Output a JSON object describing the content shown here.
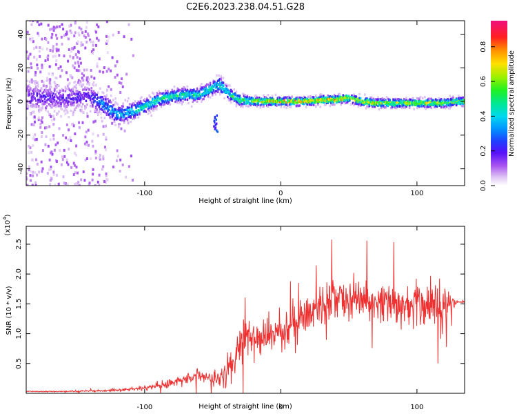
{
  "title": "C2E6.2023.238.04.51.G28",
  "colors": {
    "snr_line": "#ee3030",
    "colormap": [
      "#ffffff",
      "#e0c8f4",
      "#a855f0",
      "#7a10f0",
      "#3020ff",
      "#0050ff",
      "#00b8f0",
      "#00e0a0",
      "#30f030",
      "#c0f000",
      "#ffd000",
      "#ff8000",
      "#ff2020",
      "#f01090"
    ]
  },
  "chart_data": [
    {
      "type": "heatmap",
      "xlabel": "Height of straight line (km)",
      "ylabel": "Frequency (Hz)",
      "xlim": [
        -187,
        135
      ],
      "ylim": [
        -50,
        48
      ],
      "xticks": [
        -100,
        0,
        100
      ],
      "xtick_labels": [
        "-100",
        "0",
        "100"
      ],
      "yticks": [
        -40,
        -20,
        0,
        20,
        40
      ],
      "ytick_labels": [
        "-40",
        "-20",
        "0",
        "20",
        "40"
      ],
      "colorbar": {
        "label": "Normalized spectral amplitude",
        "range": [
          0,
          0.95
        ],
        "ticks": [
          0.0,
          0.2,
          0.4,
          0.6,
          0.8
        ],
        "tick_labels": [
          "0.0",
          "0.2",
          "0.4",
          "0.6",
          "0.8"
        ]
      },
      "ridge": {
        "x": [
          -185,
          -160,
          -140,
          -130,
          -120,
          -110,
          -100,
          -90,
          -80,
          -70,
          -60,
          -50,
          -45,
          -40,
          -35,
          -30,
          -20,
          -10,
          0,
          10,
          20,
          30,
          40,
          50,
          60,
          70,
          80,
          90,
          100,
          110,
          120,
          130
        ],
        "freq": [
          3,
          2,
          3,
          -2,
          -8,
          -6,
          -3,
          1,
          3,
          4,
          4,
          8,
          10,
          6,
          3,
          1,
          0,
          0,
          0,
          0,
          0,
          1,
          1,
          2,
          0,
          -1,
          -1,
          -1,
          -1,
          -1,
          -1,
          0
        ],
        "amplitude": [
          0.2,
          0.2,
          0.22,
          0.35,
          0.42,
          0.45,
          0.5,
          0.5,
          0.52,
          0.5,
          0.5,
          0.48,
          0.45,
          0.45,
          0.55,
          0.62,
          0.7,
          0.75,
          0.8,
          0.8,
          0.78,
          0.8,
          0.8,
          0.78,
          0.72,
          0.7,
          0.7,
          0.7,
          0.72,
          0.7,
          0.68,
          0.68
        ],
        "width_hz": [
          9,
          9,
          9,
          8,
          7,
          6,
          5,
          5,
          5,
          5,
          5,
          5,
          6,
          5,
          4,
          4,
          3,
          3,
          3,
          3,
          3,
          3,
          3,
          3,
          3,
          3,
          3,
          3,
          3,
          3,
          3,
          3
        ]
      },
      "features": [
        {
          "x": -48,
          "freq_range": [
            -18,
            -8
          ],
          "amplitude": 0.3
        }
      ]
    },
    {
      "type": "line",
      "xlabel": "Height of straight line (km)",
      "ylabel": "SNR (10 * v/v)",
      "y_scale_label": "(x10",
      "y_scale_exponent": "4",
      "xlim": [
        -187,
        135
      ],
      "ylim": [
        0,
        28000
      ],
      "xticks": [
        -100,
        0,
        100
      ],
      "xtick_labels": [
        "-100",
        "0",
        "100"
      ],
      "yticks": [
        5000,
        10000,
        15000,
        20000,
        25000
      ],
      "ytick_labels": [
        "0.5",
        "1.0",
        "1.5",
        "2.0",
        "2.5"
      ],
      "series": [
        {
          "x": [
            -187,
            -160,
            -140,
            -120,
            -110,
            -100,
            -90,
            -80,
            -70,
            -60,
            -50,
            -40,
            -35,
            -30,
            -25,
            -20,
            -10,
            0,
            10,
            20,
            30,
            40,
            50,
            60,
            70,
            80,
            90,
            100,
            110,
            120,
            125,
            130,
            135
          ],
          "mean": [
            300,
            300,
            400,
            500,
            700,
            900,
            1200,
            1700,
            2500,
            3000,
            2500,
            3500,
            5500,
            8000,
            9500,
            9000,
            9500,
            10500,
            12000,
            13500,
            14500,
            16000,
            16000,
            15500,
            15000,
            15000,
            15000,
            15000,
            14800,
            14500,
            15000,
            15300,
            15300
          ],
          "spread": [
            150,
            150,
            250,
            350,
            500,
            700,
            1000,
            1400,
            1800,
            2000,
            1800,
            2500,
            4000,
            6000,
            6500,
            6000,
            6000,
            6000,
            6000,
            6000,
            6500,
            6500,
            6500,
            6500,
            6500,
            6500,
            6500,
            6500,
            6500,
            6000,
            3000,
            300,
            200
          ]
        }
      ]
    }
  ]
}
